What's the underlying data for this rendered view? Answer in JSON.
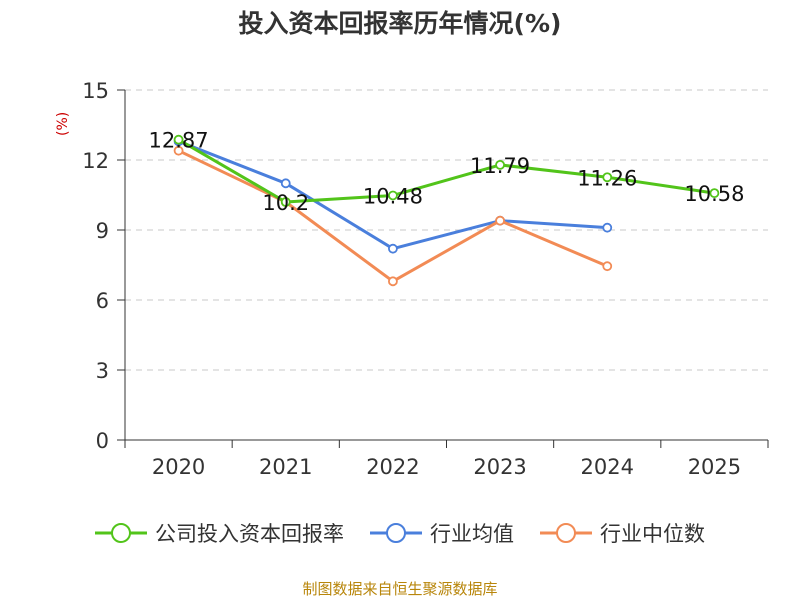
{
  "chart_data": {
    "type": "line",
    "title": "投入资本回报率历年情况(%)",
    "ylabel": "(%)",
    "categories": [
      "2020",
      "2021",
      "2022",
      "2023",
      "2024",
      "2025"
    ],
    "ylim": [
      0,
      15
    ],
    "yticks": [
      0,
      3,
      6,
      9,
      12,
      15
    ],
    "series": [
      {
        "name": "公司投入资本回报率",
        "color": "#52c41a",
        "values": [
          12.87,
          10.2,
          10.48,
          11.79,
          11.26,
          10.58
        ],
        "labels": [
          "12.87",
          "10.2",
          "10.48",
          "11.79",
          "11.26",
          "10.58"
        ]
      },
      {
        "name": "行业均值",
        "color": "#4a7fdc",
        "values": [
          12.8,
          11.0,
          8.2,
          9.4,
          9.1,
          null
        ]
      },
      {
        "name": "行业中位数",
        "color": "#f28b55",
        "values": [
          12.4,
          10.2,
          6.8,
          9.4,
          7.45,
          null
        ]
      }
    ]
  },
  "source": "制图数据来自恒生聚源数据库"
}
